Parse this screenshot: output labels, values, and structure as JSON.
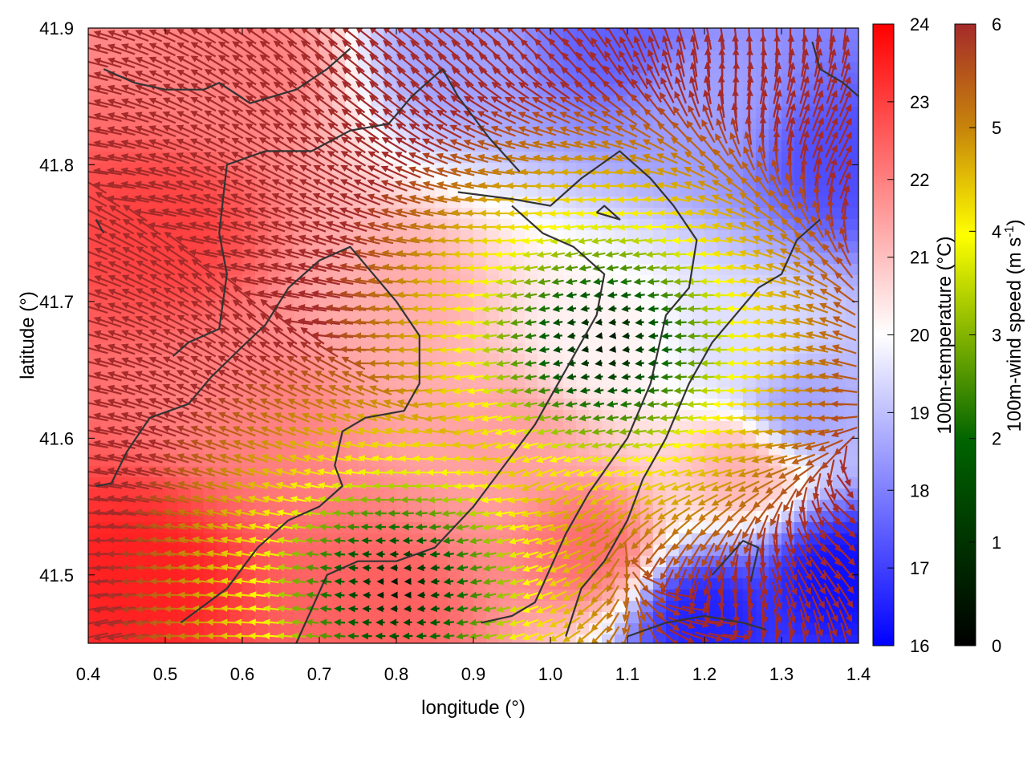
{
  "chart_data": {
    "type": "heatmap",
    "overlay": "wind-vector-field",
    "xlabel": "longitude (°)",
    "ylabel": "latitude (°)",
    "xlim": [
      0.4,
      1.4
    ],
    "ylim": [
      41.45,
      41.9
    ],
    "x_ticks": [
      0.4,
      0.5,
      0.6,
      0.7,
      0.8,
      0.9,
      1.0,
      1.1,
      1.2,
      1.3,
      1.4
    ],
    "x_tick_labels": [
      "0.4",
      "0.5",
      "0.6",
      "0.7",
      "0.8",
      "0.9",
      "1.0",
      "1.1",
      "1.2",
      "1.3",
      "1.4"
    ],
    "y_ticks": [
      41.5,
      41.6,
      41.7,
      41.8,
      41.9
    ],
    "y_tick_labels": [
      "41.5",
      "41.6",
      "41.7",
      "41.8",
      "41.9"
    ],
    "grid": false,
    "colorbars": [
      {
        "label": "100m-temperature (°C)",
        "range": [
          16,
          24
        ],
        "ticks": [
          "16",
          "17",
          "18",
          "19",
          "20",
          "21",
          "22",
          "23",
          "24"
        ],
        "stops": [
          "#0000ff",
          "#ffffff",
          "#ff0000"
        ]
      },
      {
        "label_main": "100m-wind speed (m s",
        "label_sup": "-1",
        "label_tail": ")",
        "range": [
          0,
          6
        ],
        "ticks": [
          "0",
          "1",
          "2",
          "3",
          "4",
          "5",
          "6"
        ],
        "stops": [
          "#000000",
          "#006400",
          "#ffff00",
          "#c8860a",
          "#a52a2a"
        ]
      }
    ],
    "temperature_blobs": [
      {
        "lon": 0.5,
        "lat": 41.75,
        "t": 23.0
      },
      {
        "lon": 0.47,
        "lat": 41.5,
        "t": 23.5
      },
      {
        "lon": 0.6,
        "lat": 41.62,
        "t": 22.0
      },
      {
        "lon": 0.8,
        "lat": 41.7,
        "t": 21.3
      },
      {
        "lon": 0.95,
        "lat": 41.6,
        "t": 21.5
      },
      {
        "lon": 1.06,
        "lat": 41.67,
        "t": 20.2
      },
      {
        "lon": 0.78,
        "lat": 41.48,
        "t": 22.5
      },
      {
        "lon": 1.05,
        "lat": 41.52,
        "t": 22.3
      },
      {
        "lon": 0.6,
        "lat": 41.87,
        "t": 22.0
      },
      {
        "lon": 0.88,
        "lat": 41.88,
        "t": 18.5
      },
      {
        "lon": 1.08,
        "lat": 41.89,
        "t": 17.5
      },
      {
        "lon": 1.2,
        "lat": 41.85,
        "t": 18.5
      },
      {
        "lon": 1.38,
        "lat": 41.8,
        "t": 17.2
      },
      {
        "lon": 1.26,
        "lat": 41.67,
        "t": 19.5
      },
      {
        "lon": 1.2,
        "lat": 41.47,
        "t": 16.5
      },
      {
        "lon": 1.38,
        "lat": 41.5,
        "t": 16.2
      },
      {
        "lon": 1.25,
        "lat": 41.58,
        "t": 21.3
      },
      {
        "lon": 1.32,
        "lat": 41.62,
        "t": 18.5
      }
    ],
    "wind_centers": [
      {
        "lon": 1.07,
        "lat": 41.67
      },
      {
        "lon": 0.8,
        "lat": 41.49
      }
    ],
    "coastline": [
      [
        [
          0.41,
          41.565
        ],
        [
          0.43,
          41.567
        ],
        [
          0.45,
          41.59
        ],
        [
          0.48,
          41.615
        ],
        [
          0.53,
          41.625
        ],
        [
          0.56,
          41.645
        ],
        [
          0.6,
          41.667
        ],
        [
          0.63,
          41.683
        ],
        [
          0.66,
          41.71
        ],
        [
          0.7,
          41.73
        ],
        [
          0.74,
          41.74
        ],
        [
          0.77,
          41.72
        ],
        [
          0.8,
          41.7
        ],
        [
          0.83,
          41.675
        ],
        [
          0.83,
          41.64
        ],
        [
          0.81,
          41.62
        ],
        [
          0.76,
          41.615
        ],
        [
          0.73,
          41.605
        ],
        [
          0.72,
          41.58
        ],
        [
          0.73,
          41.565
        ],
        [
          0.7,
          41.55
        ],
        [
          0.66,
          41.54
        ],
        [
          0.62,
          41.52
        ],
        [
          0.58,
          41.49
        ],
        [
          0.52,
          41.465
        ]
      ],
      [
        [
          0.51,
          41.66
        ],
        [
          0.53,
          41.67
        ],
        [
          0.57,
          41.68
        ],
        [
          0.58,
          41.72
        ],
        [
          0.57,
          41.75
        ],
        [
          0.58,
          41.8
        ],
        [
          0.63,
          41.81
        ],
        [
          0.69,
          41.81
        ],
        [
          0.74,
          41.825
        ],
        [
          0.79,
          41.83
        ],
        [
          0.82,
          41.85
        ],
        [
          0.86,
          41.87
        ],
        [
          0.88,
          41.85
        ],
        [
          0.92,
          41.82
        ],
        [
          0.96,
          41.795
        ]
      ],
      [
        [
          0.88,
          41.78
        ],
        [
          0.95,
          41.775
        ],
        [
          1.0,
          41.77
        ],
        [
          1.04,
          41.79
        ],
        [
          1.09,
          41.81
        ],
        [
          1.13,
          41.79
        ],
        [
          1.16,
          41.77
        ],
        [
          1.19,
          41.745
        ],
        [
          1.18,
          41.71
        ],
        [
          1.15,
          41.69
        ],
        [
          1.13,
          41.64
        ],
        [
          1.1,
          41.6
        ],
        [
          1.05,
          41.56
        ],
        [
          1.02,
          41.53
        ],
        [
          1.0,
          41.505
        ],
        [
          0.98,
          41.48
        ],
        [
          0.95,
          41.47
        ],
        [
          0.91,
          41.465
        ]
      ],
      [
        [
          0.67,
          41.45
        ],
        [
          0.71,
          41.5
        ],
        [
          0.75,
          41.51
        ],
        [
          0.8,
          41.51
        ],
        [
          0.85,
          41.52
        ],
        [
          0.9,
          41.55
        ],
        [
          0.94,
          41.58
        ],
        [
          0.98,
          41.61
        ],
        [
          1.0,
          41.63
        ],
        [
          1.04,
          41.67
        ],
        [
          1.06,
          41.69
        ],
        [
          1.07,
          41.72
        ],
        [
          1.03,
          41.74
        ],
        [
          0.99,
          41.75
        ],
        [
          0.95,
          41.77
        ]
      ],
      [
        [
          1.02,
          41.455
        ],
        [
          1.04,
          41.49
        ],
        [
          1.07,
          41.51
        ],
        [
          1.1,
          41.54
        ],
        [
          1.12,
          41.57
        ],
        [
          1.15,
          41.6
        ],
        [
          1.18,
          41.64
        ],
        [
          1.21,
          41.67
        ],
        [
          1.24,
          41.69
        ],
        [
          1.27,
          41.71
        ],
        [
          1.3,
          41.72
        ],
        [
          1.32,
          41.745
        ],
        [
          1.35,
          41.76
        ]
      ],
      [
        [
          1.1,
          41.455
        ],
        [
          1.15,
          41.465
        ],
        [
          1.2,
          41.47
        ],
        [
          1.25,
          41.465
        ],
        [
          1.28,
          41.46
        ]
      ],
      [
        [
          1.26,
          41.495
        ],
        [
          1.27,
          41.52
        ],
        [
          1.25,
          41.525
        ],
        [
          1.21,
          41.5
        ]
      ],
      [
        [
          0.42,
          41.87
        ],
        [
          0.46,
          41.86
        ],
        [
          0.5,
          41.855
        ],
        [
          0.55,
          41.855
        ],
        [
          0.57,
          41.86
        ],
        [
          0.61,
          41.845
        ],
        [
          0.67,
          41.855
        ],
        [
          0.71,
          41.87
        ],
        [
          0.74,
          41.885
        ]
      ],
      [
        [
          0.41,
          41.76
        ],
        [
          0.42,
          41.75
        ]
      ],
      [
        [
          1.34,
          41.89
        ],
        [
          1.35,
          41.87
        ],
        [
          1.38,
          41.86
        ],
        [
          1.4,
          41.85
        ]
      ],
      [
        [
          1.06,
          41.765
        ],
        [
          1.09,
          41.76
        ],
        [
          1.07,
          41.77
        ],
        [
          1.06,
          41.765
        ]
      ]
    ]
  }
}
